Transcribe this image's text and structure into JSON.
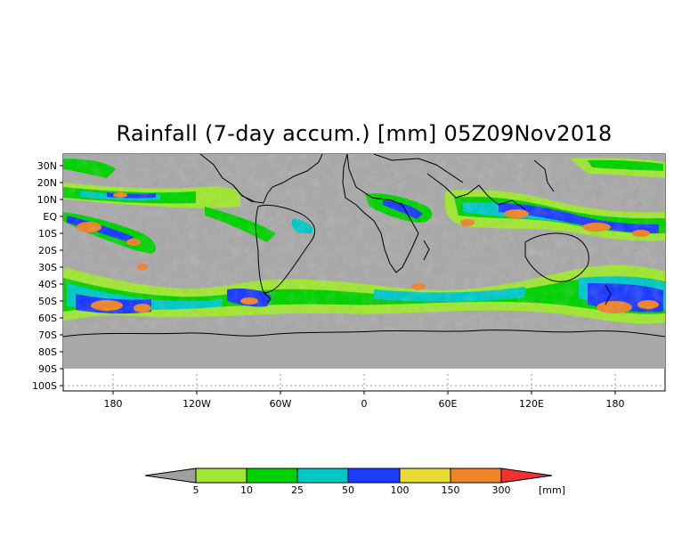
{
  "title": "Rainfall (7-day accum.) [mm] 05Z09Nov2018",
  "colors": {
    "background_gray": "#a9a9a9",
    "land_outline": "#000000",
    "below_5": "#a0a0a0",
    "c5_10": "#a0e632",
    "c10_25": "#00d200",
    "c25_50": "#00c8c8",
    "c50_100": "#1e3cff",
    "c100_150": "#e6dc32",
    "c150_300": "#f08228",
    "above_300": "#f03232"
  },
  "map": {
    "lat_labels": [
      "30N",
      "20N",
      "10N",
      "EQ",
      "10S",
      "20S",
      "30S",
      "40S",
      "50S",
      "60S",
      "70S",
      "80S",
      "90S",
      "100S"
    ],
    "lon_labels": [
      "180",
      "120W",
      "60W",
      "0",
      "60E",
      "120E",
      "180"
    ]
  },
  "colorbar": {
    "labels": [
      "5",
      "10",
      "25",
      "50",
      "100",
      "150",
      "300"
    ],
    "unit": "[mm]"
  }
}
